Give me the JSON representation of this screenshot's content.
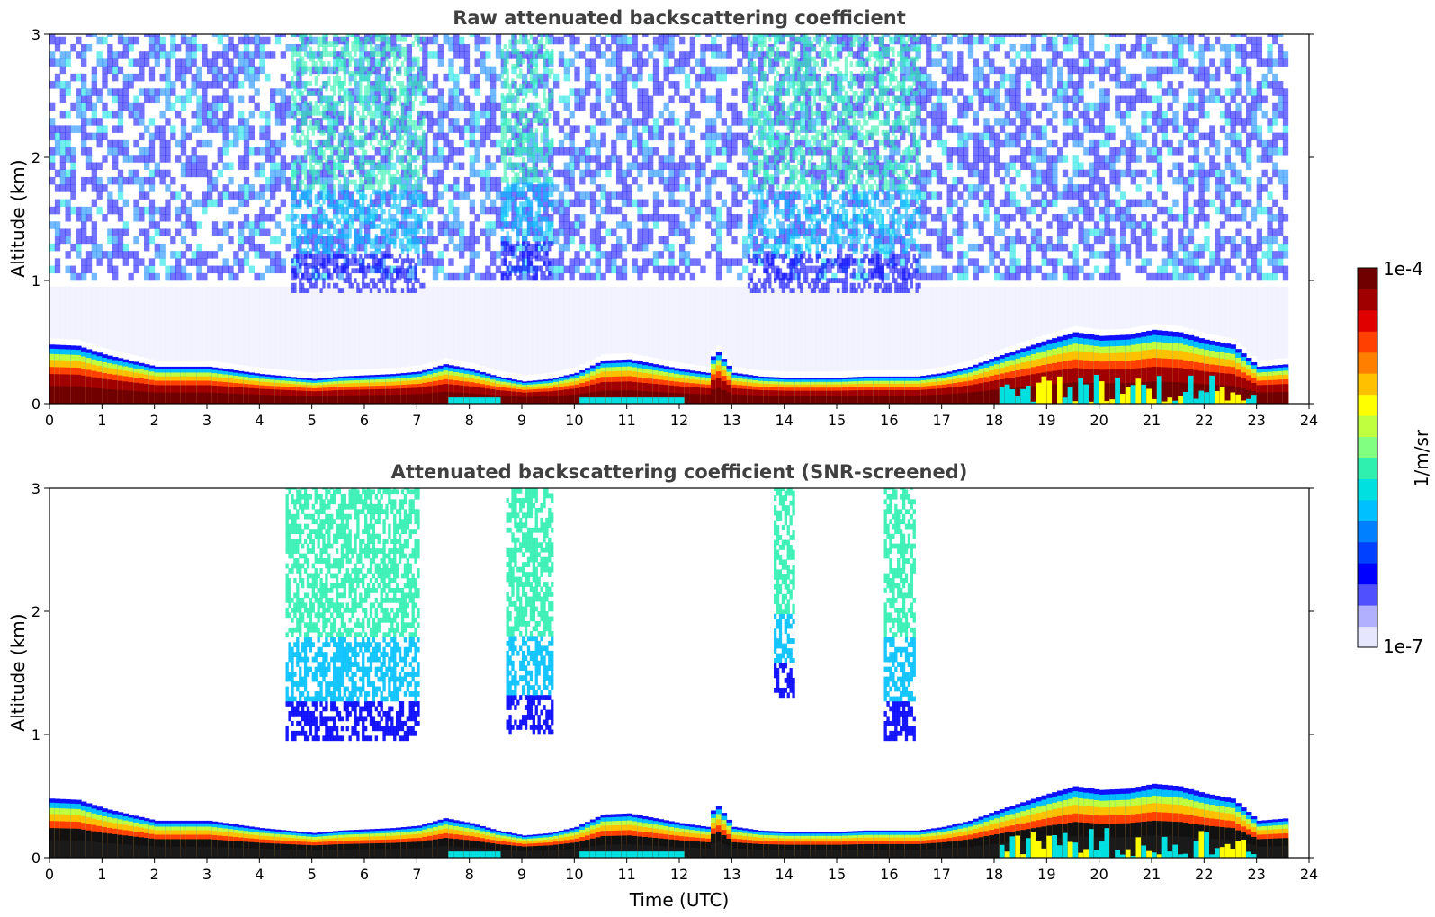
{
  "chart_data": [
    {
      "type": "heatmap",
      "title": "Raw attenuated backscattering coefficient",
      "xlabel": "",
      "ylabel": "Altitude (km)",
      "xlim": [
        0,
        24
      ],
      "ylim": [
        0,
        3
      ],
      "x_ticks": [
        "0",
        "1",
        "2",
        "3",
        "4",
        "5",
        "6",
        "7",
        "8",
        "9",
        "10",
        "11",
        "12",
        "13",
        "14",
        "15",
        "16",
        "17",
        "18",
        "19",
        "20",
        "21",
        "22",
        "23",
        "24"
      ],
      "y_ticks": [
        "0",
        "1",
        "2",
        "3"
      ],
      "data_end_time": 23.55,
      "boundary_layer_top_km": [
        [
          0,
          0.48
        ],
        [
          0.5,
          0.47
        ],
        [
          1,
          0.4
        ],
        [
          1.5,
          0.35
        ],
        [
          2,
          0.3
        ],
        [
          2.5,
          0.3
        ],
        [
          3,
          0.3
        ],
        [
          3.5,
          0.27
        ],
        [
          4,
          0.24
        ],
        [
          4.5,
          0.22
        ],
        [
          5,
          0.2
        ],
        [
          5.5,
          0.22
        ],
        [
          6,
          0.23
        ],
        [
          6.5,
          0.24
        ],
        [
          7,
          0.26
        ],
        [
          7.5,
          0.32
        ],
        [
          8,
          0.28
        ],
        [
          8.5,
          0.22
        ],
        [
          9,
          0.18
        ],
        [
          9.5,
          0.2
        ],
        [
          10,
          0.25
        ],
        [
          10.5,
          0.35
        ],
        [
          11,
          0.36
        ],
        [
          11.5,
          0.32
        ],
        [
          12,
          0.28
        ],
        [
          12.5,
          0.25
        ],
        [
          12.65,
          0.45
        ],
        [
          13,
          0.25
        ],
        [
          13.5,
          0.22
        ],
        [
          14,
          0.21
        ],
        [
          14.5,
          0.21
        ],
        [
          15,
          0.21
        ],
        [
          15.5,
          0.22
        ],
        [
          16,
          0.22
        ],
        [
          16.5,
          0.22
        ],
        [
          17,
          0.25
        ],
        [
          17.5,
          0.3
        ],
        [
          18,
          0.38
        ],
        [
          18.5,
          0.45
        ],
        [
          19,
          0.52
        ],
        [
          19.5,
          0.58
        ],
        [
          20,
          0.55
        ],
        [
          20.5,
          0.56
        ],
        [
          21,
          0.6
        ],
        [
          21.5,
          0.58
        ],
        [
          22,
          0.52
        ],
        [
          22.5,
          0.48
        ],
        [
          23,
          0.3
        ],
        [
          23.55,
          0.32
        ]
      ],
      "aerosol_layers_km": [
        {
          "t_start": 4.6,
          "t_end": 7.1,
          "base": 0.9,
          "top": 3.0
        },
        {
          "t_start": 8.6,
          "t_end": 9.6,
          "base": 1.0,
          "top": 3.0
        },
        {
          "t_start": 13.3,
          "t_end": 16.6,
          "base": 0.9,
          "top": 3.0
        }
      ]
    },
    {
      "type": "heatmap",
      "title": "Attenuated backscattering coefficient (SNR-screened)",
      "xlabel": "Time (UTC)",
      "ylabel": "Altitude (km)",
      "xlim": [
        0,
        24
      ],
      "ylim": [
        0,
        3
      ],
      "x_ticks": [
        "0",
        "1",
        "2",
        "3",
        "4",
        "5",
        "6",
        "7",
        "8",
        "9",
        "10",
        "11",
        "12",
        "13",
        "14",
        "15",
        "16",
        "17",
        "18",
        "19",
        "20",
        "21",
        "22",
        "23",
        "24"
      ],
      "y_ticks": [
        "0",
        "1",
        "2",
        "3"
      ],
      "data_end_time": 23.55,
      "aerosol_layers_km": [
        {
          "t_start": 4.5,
          "t_end": 7.0,
          "base": 0.95,
          "top": 3.0
        },
        {
          "t_start": 8.7,
          "t_end": 9.6,
          "base": 1.0,
          "top": 3.0
        },
        {
          "t_start": 13.8,
          "t_end": 14.2,
          "base": 1.3,
          "top": 3.0
        },
        {
          "t_start": 15.9,
          "t_end": 16.5,
          "base": 0.95,
          "top": 3.0
        }
      ]
    }
  ],
  "colorbar": {
    "label": "1/m/sr",
    "max_label": "1e-4",
    "min_label": "1e-7",
    "colors": [
      "#e6e6ff",
      "#b0b0ff",
      "#5050ff",
      "#0000ff",
      "#0040ff",
      "#0080ff",
      "#00c0ff",
      "#00e0e0",
      "#30f0b0",
      "#80ff80",
      "#c0ff40",
      "#ffff00",
      "#ffc000",
      "#ff8000",
      "#ff4000",
      "#e00000",
      "#a00000",
      "#700000"
    ]
  }
}
